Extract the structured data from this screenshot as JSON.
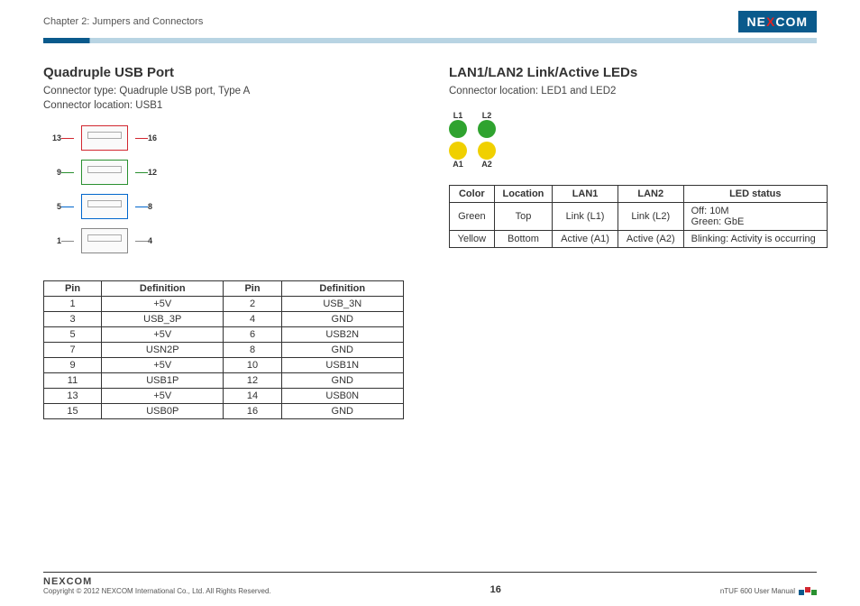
{
  "header": {
    "chapter": "Chapter 2: Jumpers and Connectors",
    "logo_prefix": "NE",
    "logo_x": "X",
    "logo_suffix": "COM",
    "logo_bg": "#0a5a8c",
    "logo_x_color": "#d22730"
  },
  "divider": {
    "accent": "#0a5a8c",
    "light": "#b8d4e3"
  },
  "usb": {
    "title": "Quadruple USB Port",
    "desc_line1": "Connector type: Quadruple USB port, Type A",
    "desc_line2": "Connector location: USB1",
    "row_colors": [
      "#d22730",
      "#2a9030",
      "#0066cc",
      "#888888"
    ],
    "rows": [
      {
        "left": "13",
        "right": "16"
      },
      {
        "left": "9",
        "right": "12"
      },
      {
        "left": "5",
        "right": "8"
      },
      {
        "left": "1",
        "right": "4"
      }
    ],
    "table_headers": [
      "Pin",
      "Definition",
      "Pin",
      "Definition"
    ],
    "pins": [
      [
        "1",
        "+5V",
        "2",
        "USB_3N"
      ],
      [
        "3",
        "USB_3P",
        "4",
        "GND"
      ],
      [
        "5",
        "+5V",
        "6",
        "USB2N"
      ],
      [
        "7",
        "USN2P",
        "8",
        "GND"
      ],
      [
        "9",
        "+5V",
        "10",
        "USB1N"
      ],
      [
        "11",
        "USB1P",
        "12",
        "GND"
      ],
      [
        "13",
        "+5V",
        "14",
        "USB0N"
      ],
      [
        "15",
        "USB0P",
        "16",
        "GND"
      ]
    ]
  },
  "led": {
    "title": "LAN1/LAN2 Link/Active LEDs",
    "desc": "Connector location: LED1 and LED2",
    "top_labels": [
      "L1",
      "L2"
    ],
    "bottom_labels": [
      "A1",
      "A2"
    ],
    "green": "#2fa32f",
    "yellow": "#f0d000",
    "table_headers": [
      "Color",
      "Location",
      "LAN1",
      "LAN2",
      "LED status"
    ],
    "rows": [
      {
        "color": "Green",
        "loc": "Top",
        "lan1": "Link (L1)",
        "lan2": "Link (L2)",
        "status": "Off: 10M\nGreen: GbE"
      },
      {
        "color": "Yellow",
        "loc": "Bottom",
        "lan1": "Active (A1)",
        "lan2": "Active (A2)",
        "status": "Blinking: Activity is occurring"
      }
    ]
  },
  "footer": {
    "logo": "NEXCOM",
    "copyright": "Copyright © 2012 NEXCOM International Co., Ltd. All Rights Reserved.",
    "page": "16",
    "manual": "nTUF 600 User Manual",
    "sq_colors": [
      "#0a5a8c",
      "#d22730",
      "#2a9030"
    ]
  }
}
